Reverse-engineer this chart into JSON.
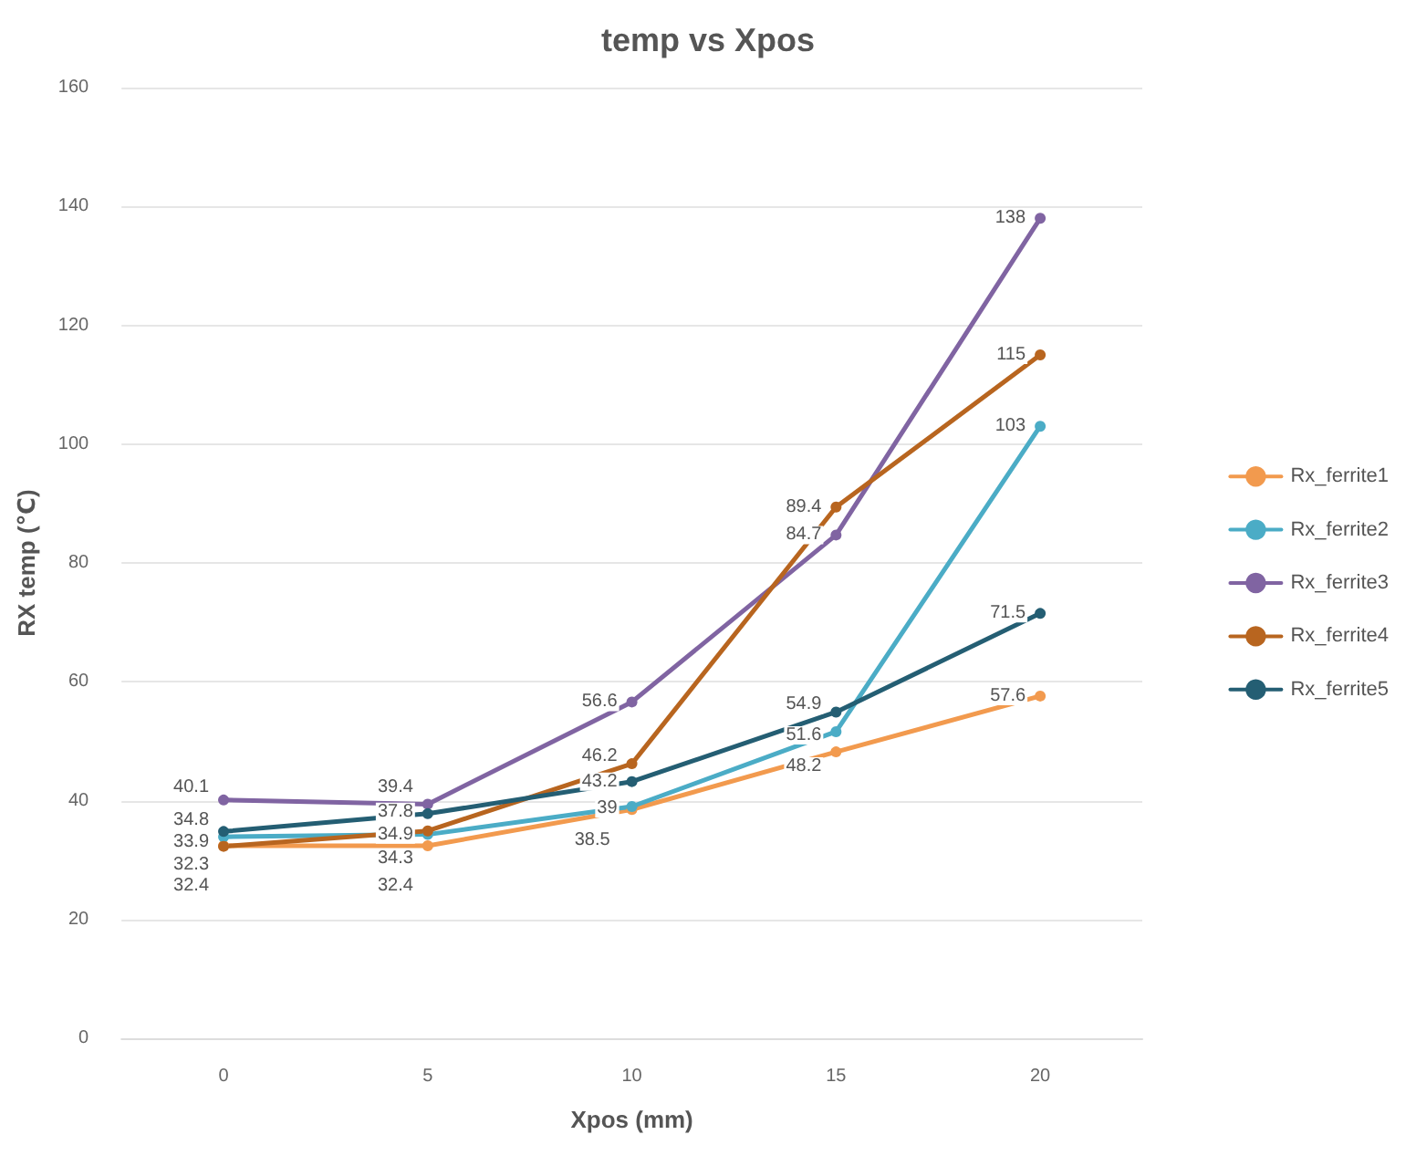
{
  "chart_data": {
    "type": "line",
    "title": "temp vs Xpos",
    "xlabel": "Xpos (mm)",
    "ylabel": "RX temp (℃)",
    "categories": [
      "0",
      "5",
      "10",
      "15",
      "20"
    ],
    "series": [
      {
        "name": "Rx_ferrite1",
        "color": "#f29a4e",
        "values": [
          32.4,
          32.4,
          38.5,
          48.2,
          57.6
        ]
      },
      {
        "name": "Rx_ferrite2",
        "color": "#4bacc6",
        "values": [
          33.9,
          34.3,
          39,
          51.6,
          103
        ]
      },
      {
        "name": "Rx_ferrite3",
        "color": "#8064a2",
        "values": [
          40.1,
          39.4,
          56.6,
          84.7,
          138
        ]
      },
      {
        "name": "Rx_ferrite4",
        "color": "#b8651f",
        "values": [
          32.3,
          34.9,
          46.2,
          89.4,
          115
        ]
      },
      {
        "name": "Rx_ferrite5",
        "color": "#245e73",
        "values": [
          34.8,
          37.8,
          43.2,
          54.9,
          71.5
        ]
      }
    ],
    "ylim": [
      0,
      160
    ],
    "yticks": [
      0,
      20,
      40,
      60,
      80,
      100,
      120,
      140,
      160
    ],
    "grid": "y",
    "legend": "right",
    "marker": "circle",
    "line_style": "solid",
    "data_labels": true
  }
}
